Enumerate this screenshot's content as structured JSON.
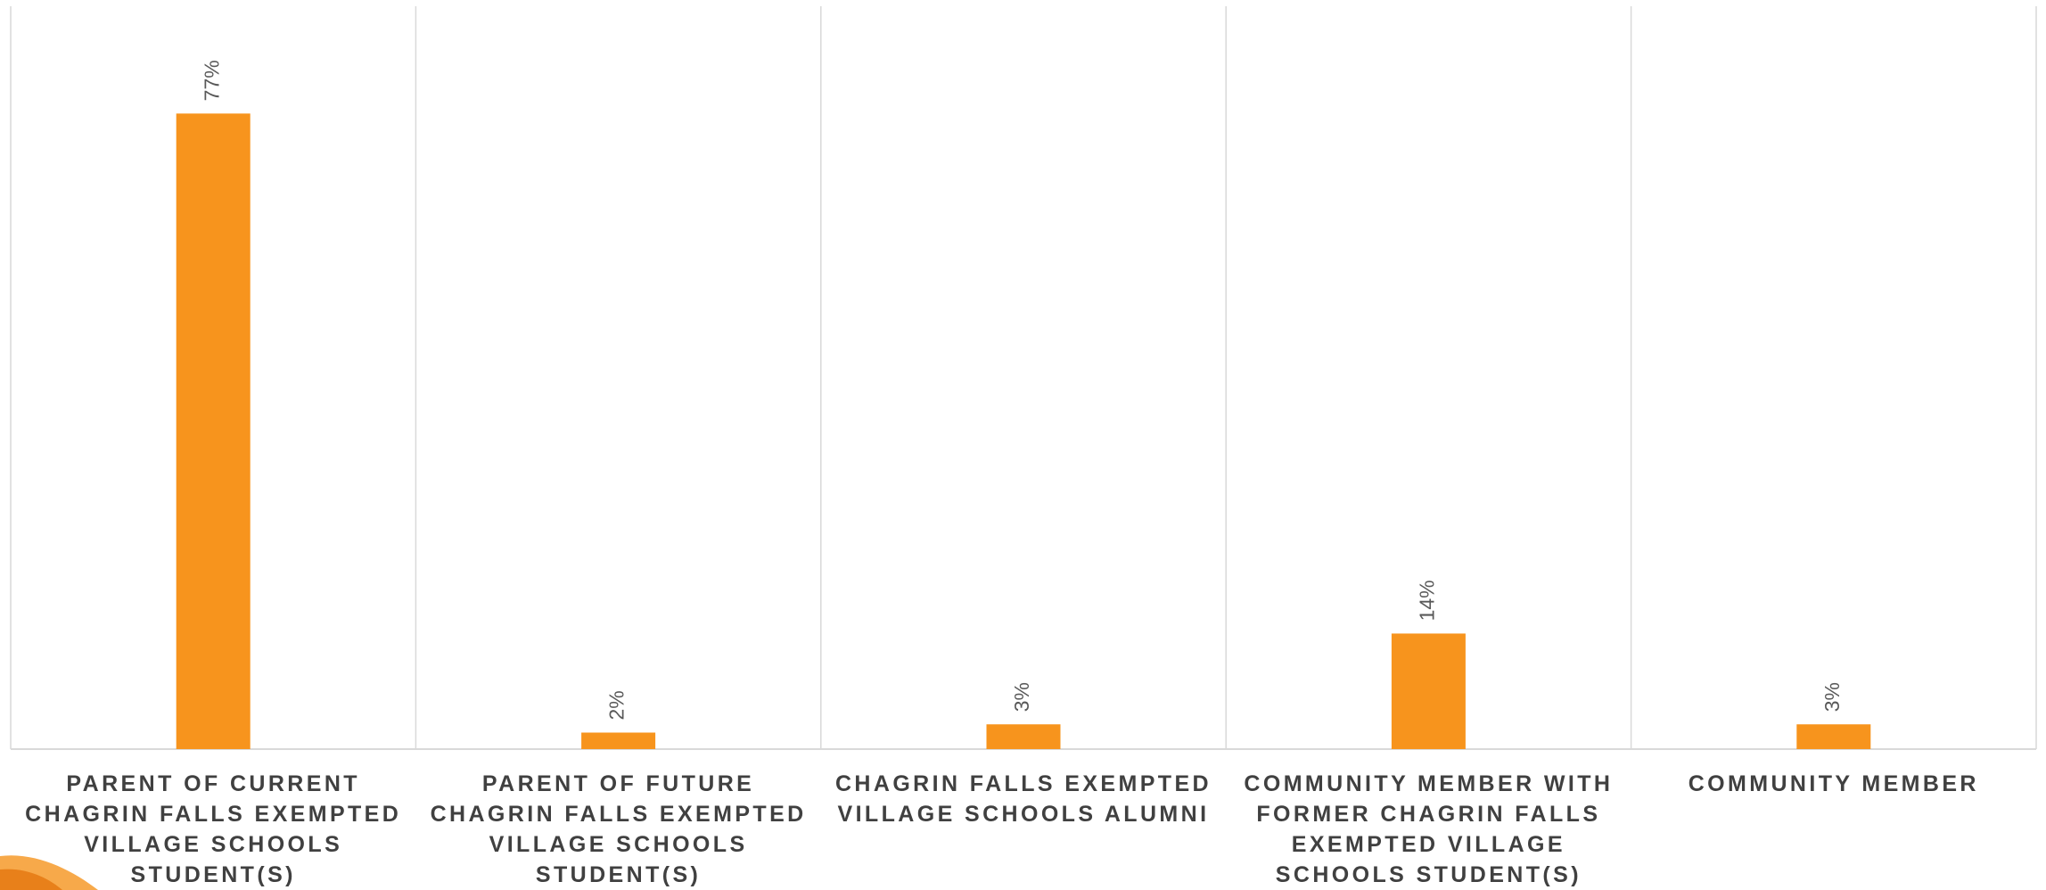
{
  "chart_data": {
    "type": "bar",
    "categories": [
      "PARENT OF CURRENT CHAGRIN FALLS EXEMPTED VILLAGE SCHOOLS STUDENT(S)",
      "PARENT OF FUTURE CHAGRIN FALLS EXEMPTED VILLAGE SCHOOLS STUDENT(S)",
      "CHAGRIN FALLS EXEMPTED VILLAGE SCHOOLS ALUMNI",
      "COMMUNITY MEMBER WITH FORMER CHAGRIN FALLS EXEMPTED VILLAGE SCHOOLS STUDENT(S)",
      "COMMUNITY MEMBER"
    ],
    "values": [
      77,
      2,
      3,
      14,
      3
    ],
    "value_labels": [
      "77%",
      "2%",
      "3%",
      "14%",
      "3%"
    ],
    "color": "#f7941d",
    "ylim": [
      0,
      90
    ],
    "grid": true
  }
}
